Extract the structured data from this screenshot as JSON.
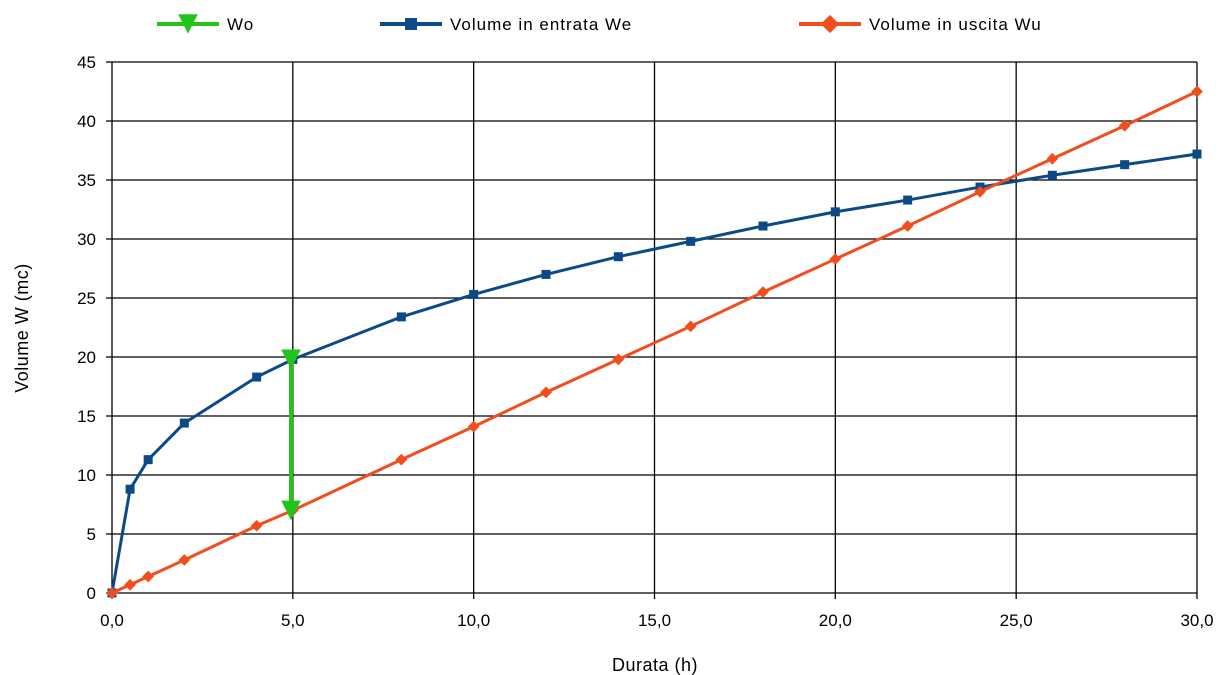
{
  "chart_data": {
    "type": "line",
    "xlabel": "Durata (h)",
    "ylabel": "Volume W (mc)",
    "xlim": [
      0,
      30
    ],
    "ylim": [
      0,
      45
    ],
    "x_ticks": [
      "0,0",
      "5,0",
      "10,0",
      "15,0",
      "20,0",
      "25,0",
      "30,0"
    ],
    "y_ticks": [
      "0",
      "5",
      "10",
      "15",
      "20",
      "25",
      "30",
      "35",
      "40",
      "45"
    ],
    "grid": true,
    "legend_position": "top",
    "series": [
      {
        "name": "Wo",
        "color": "#22c41a",
        "marker": "triangle-down",
        "x": [
          4.95,
          4.95
        ],
        "y": [
          19.8,
          7.0
        ]
      },
      {
        "name": "Volume in entrata We",
        "color": "#0b4a86",
        "marker": "square",
        "x": [
          0,
          0.5,
          1,
          2,
          4,
          5,
          8,
          10,
          12,
          14,
          16,
          18,
          20,
          22,
          24,
          26,
          28,
          30
        ],
        "y": [
          0,
          8.8,
          11.3,
          14.4,
          18.3,
          19.8,
          23.4,
          25.3,
          27.0,
          28.5,
          29.8,
          31.1,
          32.3,
          33.3,
          34.4,
          35.4,
          36.3,
          37.2
        ]
      },
      {
        "name": "Volume in uscita Wu",
        "color": "#f24d1c",
        "marker": "diamond",
        "x": [
          0,
          0.5,
          1,
          2,
          4,
          5,
          8,
          10,
          12,
          14,
          16,
          18,
          20,
          22,
          24,
          26,
          28,
          30
        ],
        "y": [
          0,
          0.7,
          1.4,
          2.8,
          5.7,
          7.0,
          11.3,
          14.1,
          17.0,
          19.8,
          22.6,
          25.5,
          28.3,
          31.1,
          34.0,
          36.8,
          39.6,
          42.5
        ]
      }
    ]
  }
}
